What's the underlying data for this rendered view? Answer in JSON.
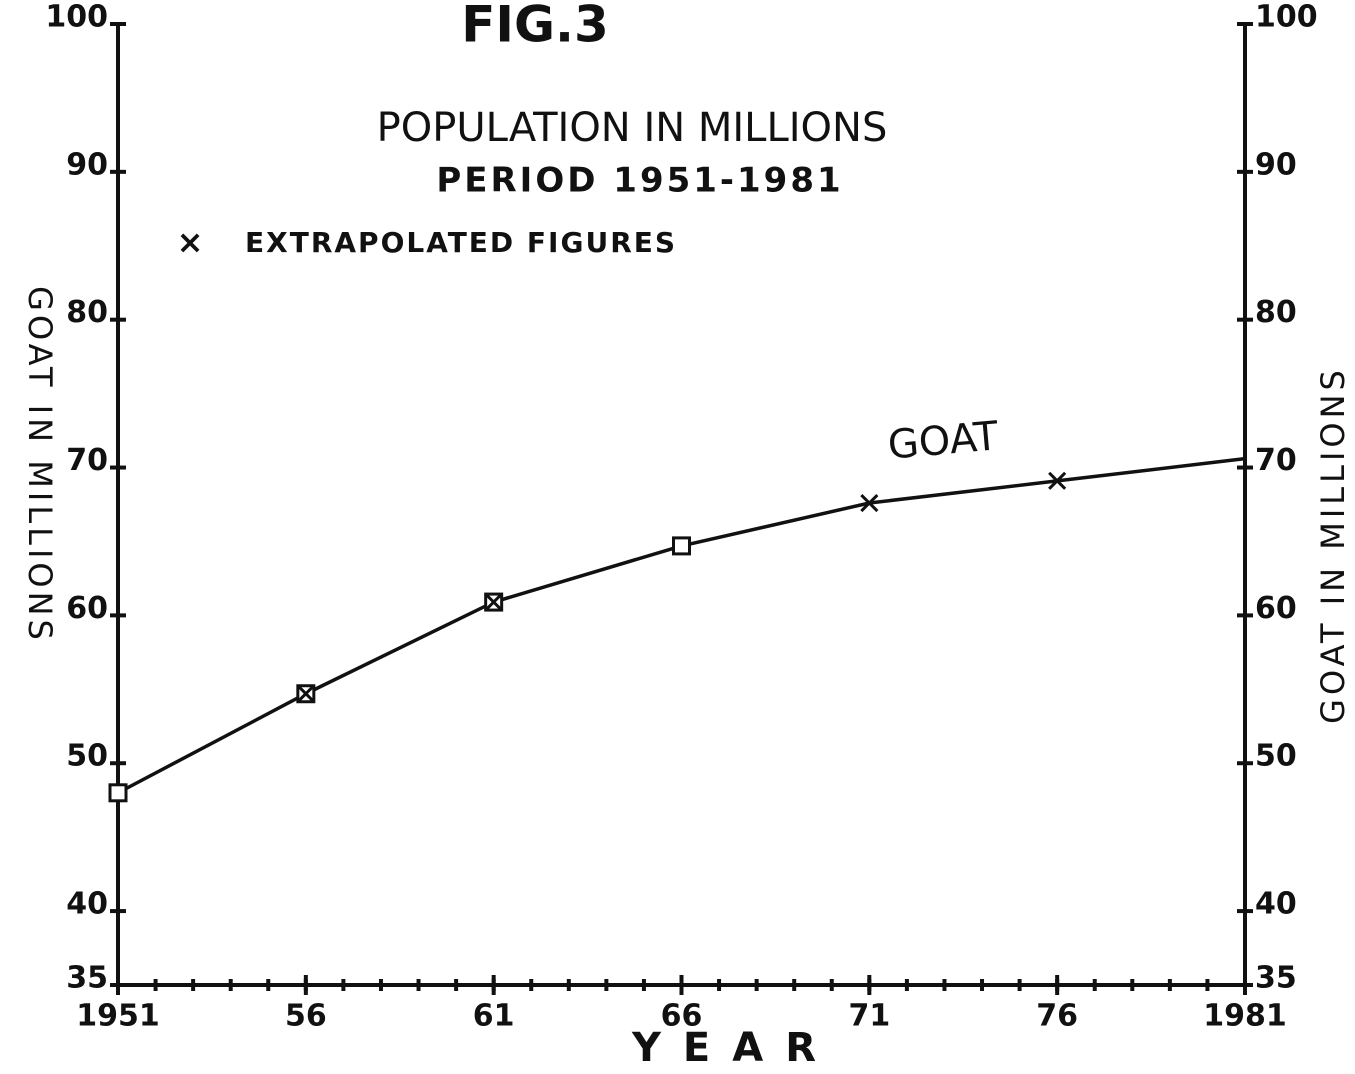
{
  "chart_data": {
    "type": "line",
    "figure": "FIG.3",
    "title": "POPULATION IN MILLIONS",
    "subtitle": "PERIOD 1951-1981",
    "legend_marker": "×",
    "legend_text": "EXTRAPOLATED FIGURES",
    "xlabel": "YEAR",
    "ylabel": "GOAT IN MILLIONS",
    "y2label": "GOAT IN MILLIONS",
    "x": [
      1951,
      1956,
      1961,
      1966,
      1971,
      1976,
      1981
    ],
    "series": [
      {
        "name": "GOAT",
        "color": "#111111",
        "values": [
          48,
          54.7,
          60.9,
          64.7,
          67.6,
          69.1,
          70.6
        ],
        "markers": [
          "square",
          "square-x",
          "square-x",
          "square",
          "x",
          "x",
          "none"
        ]
      }
    ],
    "xlim": [
      1951,
      1981
    ],
    "xticks": [
      1951,
      {
        "value": 1956,
        "label": "56"
      },
      {
        "value": 1961,
        "label": "61"
      },
      {
        "value": 1966,
        "label": "66"
      },
      {
        "value": 1971,
        "label": "71"
      },
      {
        "value": 1976,
        "label": "76"
      },
      1981
    ],
    "ylim": [
      35,
      100
    ],
    "yticks": [
      35,
      40,
      50,
      60,
      70,
      80,
      90,
      100
    ],
    "y2lim": [
      35,
      100
    ],
    "y2ticks": [
      35,
      40,
      50,
      60,
      70,
      80,
      90,
      100
    ],
    "grid": false
  }
}
